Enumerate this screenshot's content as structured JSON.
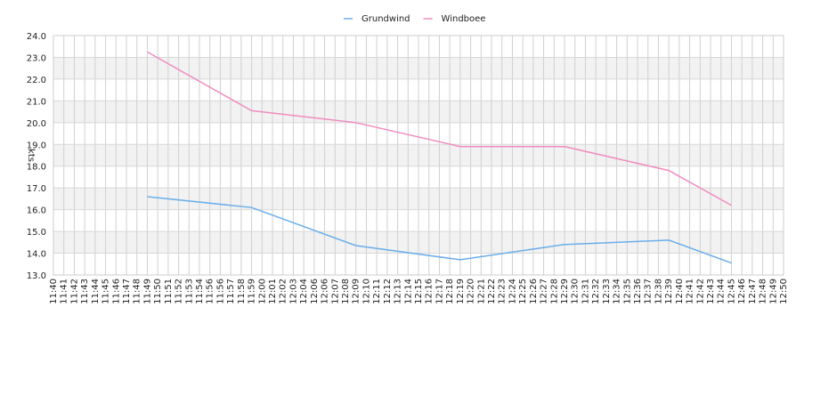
{
  "chart_data": {
    "type": "line",
    "y_label": "kts",
    "categories": [
      "11:40",
      "11:41",
      "11:42",
      "11:43",
      "11:44",
      "11:45",
      "11:46",
      "11:47",
      "11:48",
      "11:49",
      "11:50",
      "11:51",
      "11:52",
      "11:53",
      "11:54",
      "11:56",
      "11:56",
      "11:57",
      "11:58",
      "11:59",
      "12:00",
      "12:01",
      "12:02",
      "12:03",
      "12:04",
      "12:06",
      "12:06",
      "12:07",
      "12:08",
      "12:09",
      "12:10",
      "12:11",
      "12:12",
      "12:13",
      "12:14",
      "12:15",
      "12:16",
      "12:17",
      "12:18",
      "12:19",
      "12:20",
      "12:21",
      "12:22",
      "12:23",
      "12:24",
      "12:25",
      "12:26",
      "12:27",
      "12:28",
      "12:29",
      "12:30",
      "12:31",
      "12:32",
      "12:33",
      "12:34",
      "12:35",
      "12:36",
      "12:37",
      "12:38",
      "12:39",
      "12:40",
      "12:41",
      "12:42",
      "12:43",
      "12:44",
      "12:45",
      "12:46",
      "12:47",
      "12:48",
      "12:49",
      "12:50"
    ],
    "series": [
      {
        "name": "Grundwind",
        "color": "#6aaeea",
        "x": [
          "11:49",
          "11:59",
          "12:09",
          "12:19",
          "12:29",
          "12:39",
          "12:45"
        ],
        "values": [
          16.6,
          16.1,
          14.35,
          13.7,
          14.4,
          14.6,
          13.55
        ]
      },
      {
        "name": "Windboee",
        "color": "#f08cc0",
        "x": [
          "11:49",
          "11:59",
          "12:09",
          "12:19",
          "12:29",
          "12:39",
          "12:45"
        ],
        "values": [
          23.25,
          20.55,
          20.0,
          18.9,
          18.9,
          17.8,
          16.2
        ]
      }
    ],
    "ylim": [
      13,
      24
    ],
    "yticks": [
      {
        "value": 13,
        "label": "13.0"
      },
      {
        "value": 14,
        "label": "14.0"
      },
      {
        "value": 15,
        "label": "15.0"
      },
      {
        "value": 16,
        "label": "16.0"
      },
      {
        "value": 17,
        "label": "17.0"
      },
      {
        "value": 18,
        "label": "18.0"
      },
      {
        "value": 19,
        "label": "19.0"
      },
      {
        "value": 20,
        "label": "20.0"
      },
      {
        "value": 21,
        "label": "21.0"
      },
      {
        "value": 22,
        "label": "22.0"
      },
      {
        "value": 23,
        "label": "23.0"
      },
      {
        "value": 24,
        "label": "24.0"
      }
    ],
    "grid": true,
    "legend": "top"
  }
}
